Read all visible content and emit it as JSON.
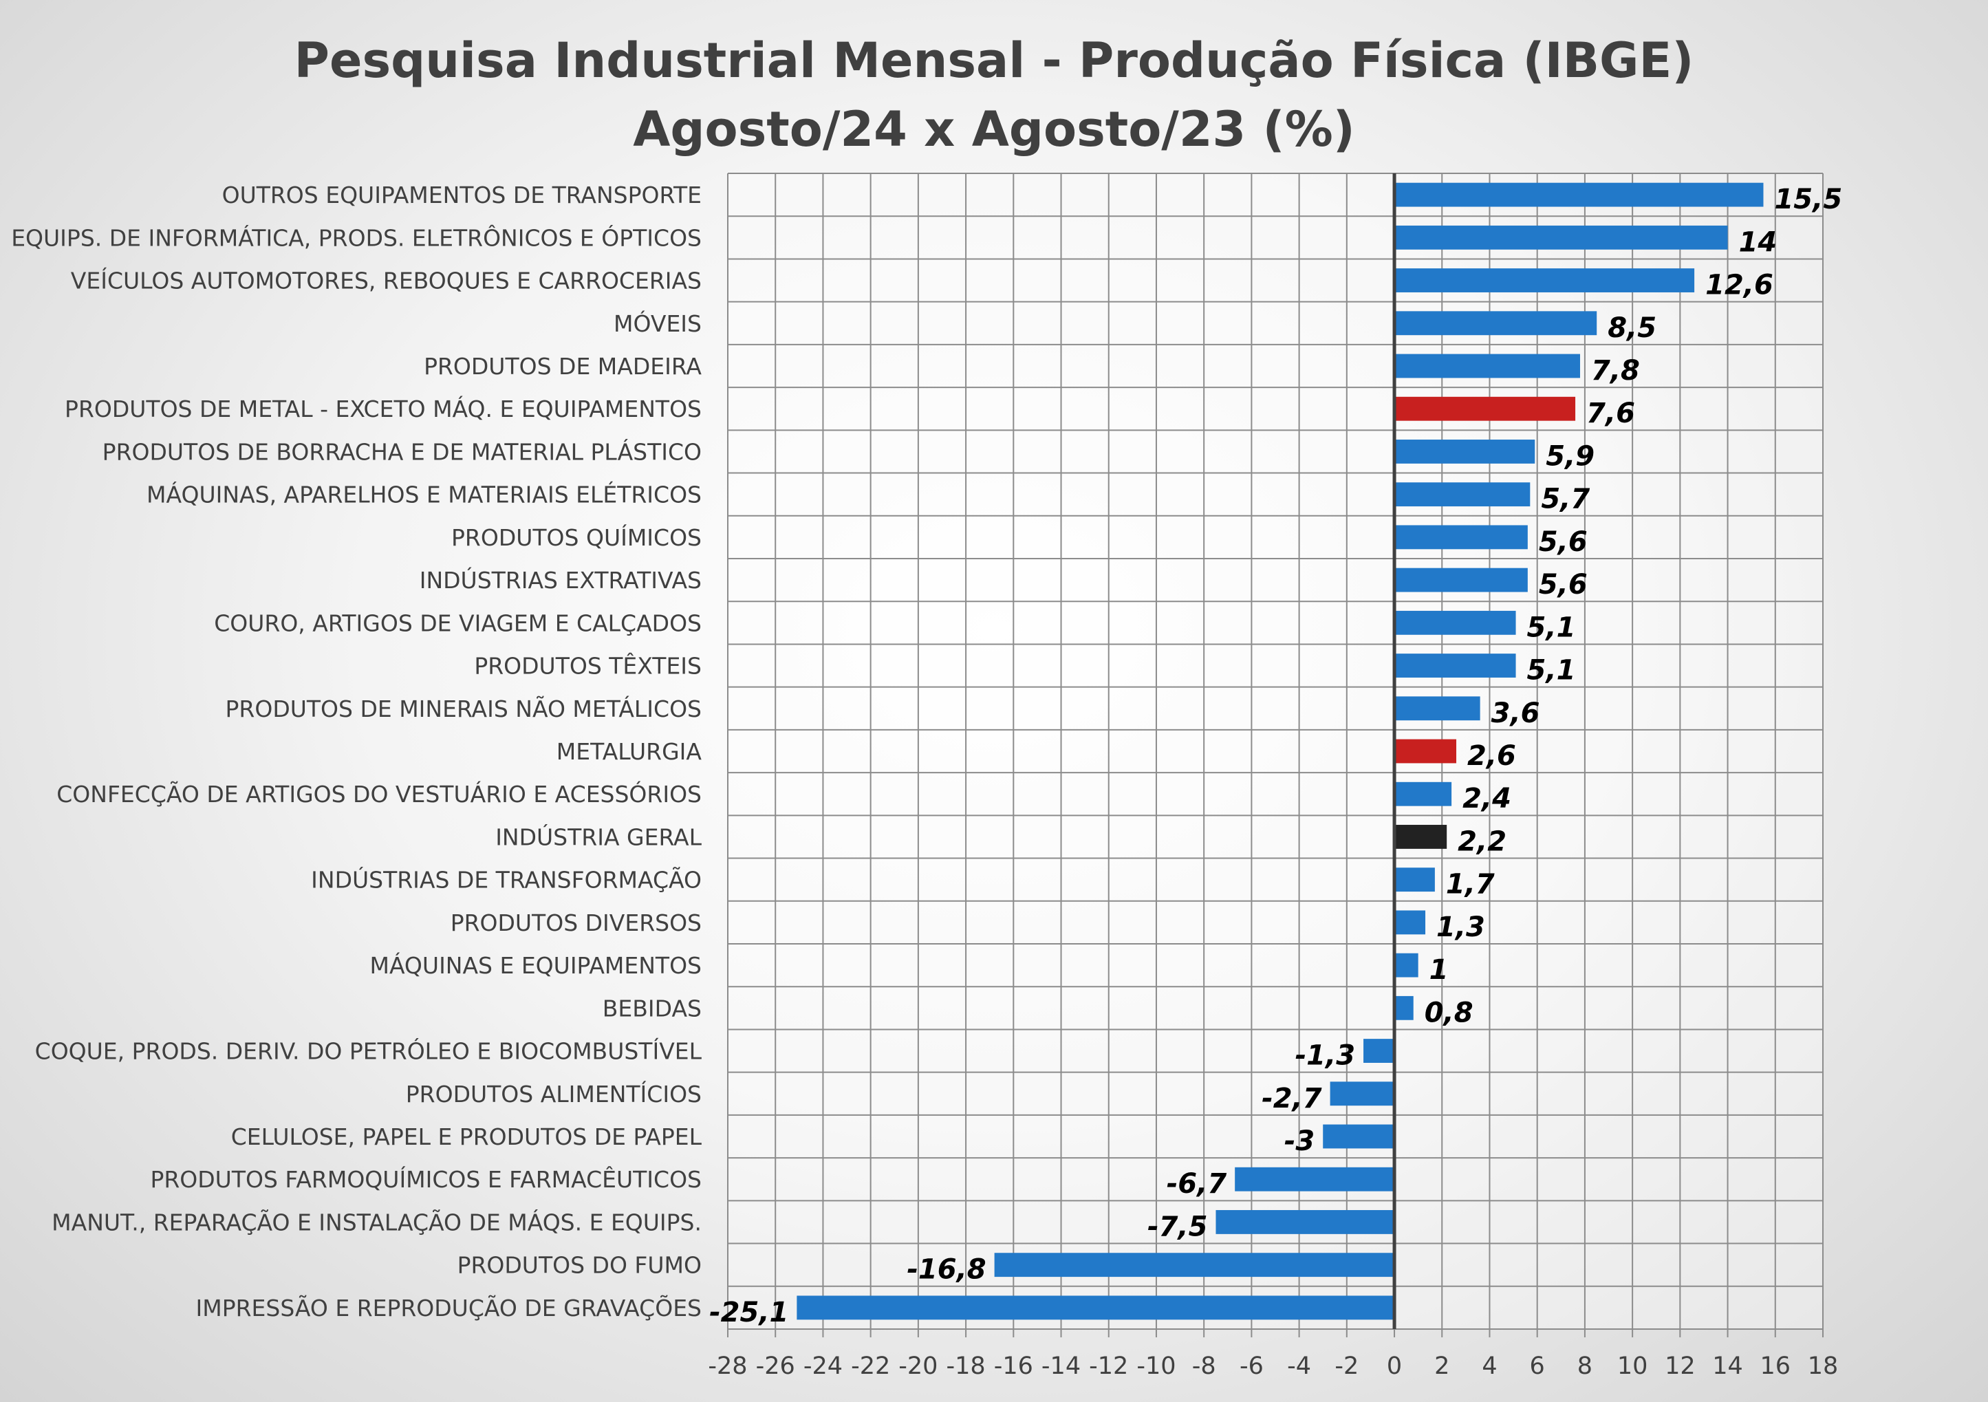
{
  "chart_data": {
    "type": "bar",
    "orientation": "horizontal",
    "title": "Pesquisa Industrial Mensal - Produção Física (IBGE)",
    "subtitle": "Agosto/24 x Agosto/23 (%)",
    "xlabel": "",
    "ylabel": "",
    "xlim": [
      -28,
      18
    ],
    "x_ticks": [
      -28,
      -26,
      -24,
      -22,
      -20,
      -18,
      -16,
      -14,
      -12,
      -10,
      -8,
      -6,
      -4,
      -2,
      0,
      2,
      4,
      6,
      8,
      10,
      12,
      14,
      16,
      18
    ],
    "grid": true,
    "legend": "none",
    "categories": [
      "OUTROS EQUIPAMENTOS DE TRANSPORTE",
      "EQUIPS. DE INFORMÁTICA, PRODS. ELETRÔNICOS E ÓPTICOS",
      "VEÍCULOS AUTOMOTORES, REBOQUES E CARROCERIAS",
      "MÓVEIS",
      "PRODUTOS DE MADEIRA",
      "PRODUTOS DE METAL - EXCETO MÁQ. E EQUIPAMENTOS",
      "PRODUTOS DE BORRACHA E DE MATERIAL PLÁSTICO",
      "MÁQUINAS, APARELHOS E MATERIAIS ELÉTRICOS",
      "PRODUTOS QUÍMICOS",
      "INDÚSTRIAS EXTRATIVAS",
      "COURO, ARTIGOS DE VIAGEM E CALÇADOS",
      "PRODUTOS TÊXTEIS",
      "PRODUTOS DE MINERAIS NÃO METÁLICOS",
      "METALURGIA",
      "CONFECÇÃO DE ARTIGOS DO VESTUÁRIO E ACESSÓRIOS",
      "INDÚSTRIA GERAL",
      "INDÚSTRIAS DE TRANSFORMAÇÃO",
      "PRODUTOS DIVERSOS",
      "MÁQUINAS E EQUIPAMENTOS",
      "BEBIDAS",
      "COQUE, PRODS. DERIV. DO PETRÓLEO E BIOCOMBUSTÍVEL",
      "PRODUTOS ALIMENTÍCIOS",
      "CELULOSE, PAPEL E PRODUTOS DE PAPEL",
      "PRODUTOS FARMOQUÍMICOS E FARMACÊUTICOS",
      "MANUT., REPARAÇÃO E INSTALAÇÃO DE MÁQS. E EQUIPS.",
      "PRODUTOS DO FUMO",
      "IMPRESSÃO E REPRODUÇÃO DE GRAVAÇÕES"
    ],
    "values": [
      15.5,
      14,
      12.6,
      8.5,
      7.8,
      7.6,
      5.9,
      5.7,
      5.6,
      5.6,
      5.1,
      5.1,
      3.6,
      2.6,
      2.4,
      2.2,
      1.7,
      1.3,
      1,
      0.8,
      -1.3,
      -2.7,
      -3,
      -6.7,
      -7.5,
      -16.8,
      -25.1
    ],
    "value_labels": [
      "15,5",
      "14",
      "12,6",
      "8,5",
      "7,8",
      "7,6",
      "5,9",
      "5,7",
      "5,6",
      "5,6",
      "5,1",
      "5,1",
      "3,6",
      "2,6",
      "2,4",
      "2,2",
      "1,7",
      "1,3",
      "1",
      "0,8",
      "-1,3",
      "-2,7",
      "-3",
      "-6,7",
      "-7,5",
      "-16,8",
      "-25,1"
    ],
    "bar_colors": [
      "#2279c9",
      "#2279c9",
      "#2279c9",
      "#2279c9",
      "#2279c9",
      "#c8201f",
      "#2279c9",
      "#2279c9",
      "#2279c9",
      "#2279c9",
      "#2279c9",
      "#2279c9",
      "#2279c9",
      "#c8201f",
      "#2279c9",
      "#222222",
      "#2279c9",
      "#2279c9",
      "#2279c9",
      "#2279c9",
      "#2279c9",
      "#2279c9",
      "#2279c9",
      "#2279c9",
      "#2279c9",
      "#2279c9",
      "#2279c9"
    ]
  }
}
